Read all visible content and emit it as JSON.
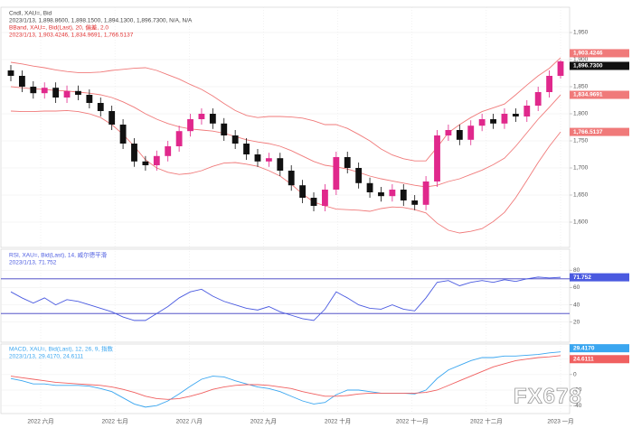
{
  "watermark": "FX678",
  "chart_data": [
    {
      "type": "candlestick",
      "legend": [
        "Cndl, XAU=, Bid",
        "2023/1/13, 1,898.8600, 1,898.1500, 1,894.1300, 1,896.7300, N/A, N/A",
        "BBand, XAU=, Bid(Last), 20, 偏差, 2.0",
        "2023/1/13, 1,903.4246, 1,834.9691, 1,766.5137"
      ],
      "x_labels": [
        "2022 六月",
        "2022 七月",
        "2022 八月",
        "2022 九月",
        "2022 十月",
        "2022 十一月",
        "2022 十二月",
        "2023 一月"
      ],
      "up_color": "#e0288c",
      "down_color": "#111111",
      "band_color": "#f07a7a",
      "open": [
        1880,
        1870,
        1850,
        1838,
        1848,
        1830,
        1842,
        1835,
        1820,
        1805,
        1780,
        1745,
        1712,
        1705,
        1722,
        1740,
        1768,
        1790,
        1800,
        1782,
        1760,
        1745,
        1725,
        1712,
        1718,
        1695,
        1668,
        1645,
        1630,
        1660,
        1720,
        1700,
        1672,
        1655,
        1648,
        1660,
        1640,
        1632,
        1675,
        1760,
        1770,
        1752,
        1778,
        1790,
        1782,
        1800,
        1795,
        1815,
        1840,
        1870
      ],
      "high": [
        1890,
        1880,
        1860,
        1858,
        1858,
        1852,
        1852,
        1845,
        1830,
        1815,
        1790,
        1755,
        1722,
        1732,
        1750,
        1778,
        1800,
        1810,
        1810,
        1792,
        1770,
        1755,
        1735,
        1728,
        1728,
        1705,
        1678,
        1655,
        1670,
        1730,
        1730,
        1710,
        1682,
        1665,
        1670,
        1670,
        1650,
        1685,
        1770,
        1780,
        1780,
        1788,
        1800,
        1800,
        1810,
        1810,
        1825,
        1850,
        1880,
        1898.86
      ],
      "low": [
        1860,
        1840,
        1828,
        1828,
        1820,
        1820,
        1825,
        1810,
        1795,
        1770,
        1735,
        1702,
        1695,
        1695,
        1712,
        1730,
        1758,
        1780,
        1772,
        1750,
        1735,
        1715,
        1702,
        1702,
        1685,
        1658,
        1635,
        1620,
        1620,
        1650,
        1690,
        1662,
        1645,
        1638,
        1638,
        1630,
        1622,
        1622,
        1665,
        1750,
        1742,
        1742,
        1768,
        1772,
        1772,
        1785,
        1785,
        1805,
        1830,
        1865
      ],
      "close": [
        1870,
        1850,
        1838,
        1848,
        1830,
        1842,
        1835,
        1820,
        1805,
        1780,
        1745,
        1712,
        1705,
        1722,
        1740,
        1768,
        1790,
        1800,
        1782,
        1760,
        1745,
        1725,
        1712,
        1718,
        1695,
        1668,
        1645,
        1630,
        1660,
        1720,
        1700,
        1672,
        1655,
        1648,
        1660,
        1640,
        1632,
        1675,
        1760,
        1770,
        1752,
        1778,
        1790,
        1782,
        1800,
        1795,
        1815,
        1840,
        1870,
        1896.73
      ],
      "upper": [
        1895,
        1892,
        1888,
        1885,
        1881,
        1878,
        1876,
        1876,
        1877,
        1880,
        1882,
        1884,
        1885,
        1880,
        1872,
        1864,
        1854,
        1845,
        1833,
        1819,
        1806,
        1797,
        1793,
        1795,
        1795,
        1794,
        1792,
        1787,
        1780,
        1780,
        1773,
        1762,
        1750,
        1735,
        1724,
        1717,
        1713,
        1713,
        1738,
        1765,
        1780,
        1793,
        1804,
        1811,
        1818,
        1835,
        1853,
        1870,
        1884,
        1903.4246
      ],
      "middle": [
        1850,
        1848,
        1846,
        1845,
        1843,
        1842,
        1840,
        1838,
        1835,
        1830,
        1822,
        1812,
        1800,
        1790,
        1782,
        1776,
        1772,
        1770,
        1768,
        1764,
        1758,
        1752,
        1748,
        1745,
        1740,
        1732,
        1722,
        1712,
        1705,
        1702,
        1698,
        1692,
        1685,
        1680,
        1676,
        1672,
        1668,
        1665,
        1668,
        1675,
        1680,
        1688,
        1696,
        1706,
        1718,
        1740,
        1765,
        1790,
        1812,
        1834.9691
      ],
      "lower": [
        1805,
        1804,
        1804,
        1805,
        1805,
        1806,
        1804,
        1800,
        1793,
        1780,
        1762,
        1740,
        1715,
        1700,
        1692,
        1688,
        1690,
        1695,
        1703,
        1709,
        1710,
        1707,
        1703,
        1695,
        1685,
        1670,
        1652,
        1637,
        1630,
        1624,
        1623,
        1622,
        1620,
        1625,
        1628,
        1627,
        1623,
        1617,
        1598,
        1585,
        1580,
        1583,
        1588,
        1601,
        1618,
        1645,
        1677,
        1710,
        1740,
        1766.5137
      ],
      "value_labels": {
        "close": "1,896.7300",
        "upper": "1,903.4246",
        "middle": "1,834.9691",
        "lower": "1,766.5137"
      },
      "ylim": [
        1560,
        1990
      ],
      "yticks": [
        {
          "value": 1600,
          "label": "1,600"
        },
        {
          "value": 1650,
          "label": "1,650"
        },
        {
          "value": 1700,
          "label": "1,700"
        },
        {
          "value": 1750,
          "label": "1,750"
        },
        {
          "value": 1800,
          "label": "1,800"
        },
        {
          "value": 1850,
          "label": "1,850"
        },
        {
          "value": 1900,
          "label": "1,900"
        },
        {
          "value": 1950,
          "label": "1,950"
        }
      ]
    },
    {
      "type": "rsi",
      "legend": [
        "RSI, XAU=, Bid(Last), 14, 威尔德平滑",
        "2023/1/13, 71.752"
      ],
      "color": "#4a5ae0",
      "level_color": "#3a3ac0",
      "values": [
        55,
        48,
        42,
        48,
        40,
        46,
        44,
        40,
        36,
        32,
        26,
        22,
        22,
        30,
        38,
        48,
        55,
        58,
        50,
        44,
        40,
        36,
        34,
        38,
        32,
        28,
        24,
        22,
        35,
        55,
        48,
        40,
        36,
        35,
        40,
        35,
        33,
        48,
        66,
        68,
        62,
        66,
        68,
        66,
        69,
        67,
        70,
        72,
        71,
        71.752
      ],
      "value_label": "71.752",
      "levels": [
        30,
        70
      ],
      "ylim": [
        0,
        100
      ],
      "yticks": [
        20,
        40,
        60,
        80
      ]
    },
    {
      "type": "macd",
      "legend": [
        "MACD, XAU=, Bid(Last), 12, 26, 9, 指数",
        "2023/1/13, 29.4170, 24.6111"
      ],
      "series": [
        {
          "color": "#3aa6f0",
          "value_label": "29.4170",
          "values": [
            -5,
            -8,
            -12,
            -12,
            -14,
            -14,
            -14,
            -15,
            -18,
            -22,
            -30,
            -38,
            -42,
            -40,
            -34,
            -25,
            -15,
            -6,
            -2,
            -3,
            -8,
            -12,
            -16,
            -18,
            -22,
            -28,
            -34,
            -38,
            -36,
            -26,
            -20,
            -20,
            -22,
            -24,
            -24,
            -24,
            -25,
            -20,
            -5,
            6,
            12,
            18,
            22,
            22,
            24,
            24,
            25,
            26,
            28,
            29.417
          ]
        },
        {
          "color": "#f06060",
          "value_label": "24.6111",
          "values": [
            -2,
            -4,
            -6,
            -8,
            -10,
            -11,
            -12,
            -13,
            -14,
            -16,
            -19,
            -23,
            -28,
            -31,
            -32,
            -31,
            -28,
            -24,
            -19,
            -16,
            -14,
            -13,
            -13,
            -14,
            -16,
            -18,
            -22,
            -25,
            -28,
            -28,
            -27,
            -25,
            -24,
            -24,
            -24,
            -24,
            -24,
            -23,
            -20,
            -14,
            -8,
            -2,
            4,
            10,
            14,
            18,
            20,
            22,
            23,
            24.611
          ]
        }
      ],
      "ylim": [
        -48,
        36
      ],
      "yticks": [
        -40,
        -20,
        0,
        20
      ]
    }
  ]
}
